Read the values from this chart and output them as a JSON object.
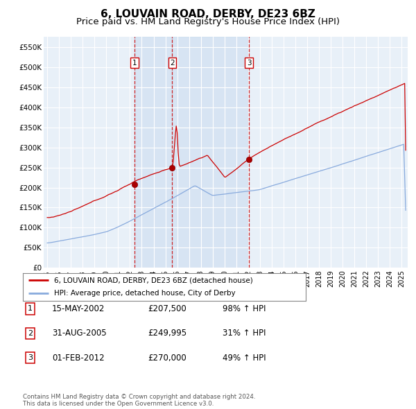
{
  "title": "6, LOUVAIN ROAD, DERBY, DE23 6BZ",
  "subtitle": "Price paid vs. HM Land Registry's House Price Index (HPI)",
  "title_fontsize": 11,
  "subtitle_fontsize": 9.5,
  "background_color": "#ffffff",
  "plot_bg_color": "#e8f0f8",
  "grid_color": "#ffffff",
  "red_line_color": "#cc0000",
  "blue_line_color": "#88aadd",
  "ylim": [
    0,
    575000
  ],
  "yticks": [
    0,
    50000,
    100000,
    150000,
    200000,
    250000,
    300000,
    350000,
    400000,
    450000,
    500000,
    550000
  ],
  "ytick_labels": [
    "£0",
    "£50K",
    "£100K",
    "£150K",
    "£200K",
    "£250K",
    "£300K",
    "£350K",
    "£400K",
    "£450K",
    "£500K",
    "£550K"
  ],
  "xlim_start": 1994.7,
  "xlim_end": 2025.5,
  "xticks": [
    1995,
    1996,
    1997,
    1998,
    1999,
    2000,
    2001,
    2002,
    2003,
    2004,
    2005,
    2006,
    2007,
    2008,
    2009,
    2010,
    2011,
    2012,
    2013,
    2014,
    2015,
    2016,
    2017,
    2018,
    2019,
    2020,
    2021,
    2022,
    2023,
    2024,
    2025
  ],
  "sale_dates": [
    2002.37,
    2005.58,
    2012.08
  ],
  "sale_prices": [
    207500,
    249995,
    270000
  ],
  "sale_labels": [
    "1",
    "2",
    "3"
  ],
  "legend_red": "6, LOUVAIN ROAD, DERBY, DE23 6BZ (detached house)",
  "legend_blue": "HPI: Average price, detached house, City of Derby",
  "table_rows": [
    [
      "1",
      "15-MAY-2002",
      "£207,500",
      "98% ↑ HPI"
    ],
    [
      "2",
      "31-AUG-2005",
      "£249,995",
      "31% ↑ HPI"
    ],
    [
      "3",
      "01-FEB-2012",
      "£270,000",
      "49% ↑ HPI"
    ]
  ],
  "footer": "Contains HM Land Registry data © Crown copyright and database right 2024.\nThis data is licensed under the Open Government Licence v3.0.",
  "span_color": "#ccddf0",
  "span_alpha": 0.6
}
